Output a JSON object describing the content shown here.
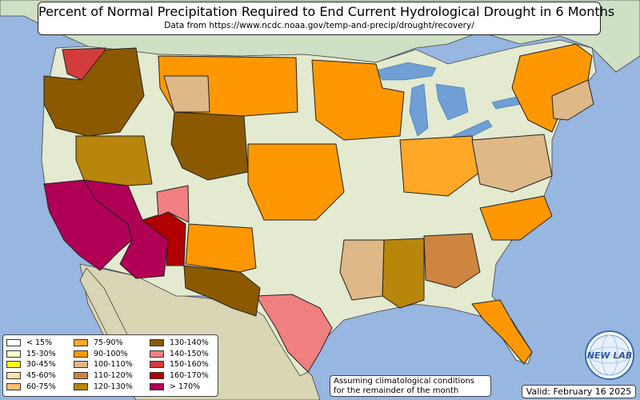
{
  "title": "Percent of Normal Precipitation Required to End Current Hydrological Drought in 6 Months",
  "subtitle": "Data from https://www.ncdc.noaa.gov/temp-and-precip/drought/recovery/",
  "note": [
    "Assuming climatological conditions",
    "for the remainder of the month"
  ],
  "valid": "Valid: February 16 2025",
  "logo_text": "NEW LAB",
  "colors": {
    "ocean": "#97b6e0",
    "land": "#e4ead0",
    "mexico": "#d8d6b4",
    "canada": "#cfe0c4",
    "lake": "#6f9fd4",
    "border": "#222222"
  },
  "legend": [
    {
      "label": "< 15%",
      "color": "#ffffff"
    },
    {
      "label": "15-30%",
      "color": "#ffffcc"
    },
    {
      "label": "30-45%",
      "color": "#ffff00"
    },
    {
      "label": "45-60%",
      "color": "#fde0a8"
    },
    {
      "label": "60-75%",
      "color": "#fdbf6f"
    },
    {
      "label": "75-90%",
      "color": "#ffa726"
    },
    {
      "label": "90-100%",
      "color": "#ff9800"
    },
    {
      "label": "100-110%",
      "color": "#deb887"
    },
    {
      "label": "110-120%",
      "color": "#cd853f"
    },
    {
      "label": "120-130%",
      "color": "#b8860b"
    },
    {
      "label": "130-140%",
      "color": "#8b5a00"
    },
    {
      "label": "140-150%",
      "color": "#f08080"
    },
    {
      "label": "150-160%",
      "color": "#d23c3c"
    },
    {
      "label": "160-170%",
      "color": "#b00000"
    },
    {
      "label": "> 170%",
      "color": "#b00055"
    }
  ],
  "regions": [
    {
      "name": "southern-california",
      "category": "> 170%"
    },
    {
      "name": "central-arizona",
      "category": "> 170%"
    },
    {
      "name": "western-new-mexico",
      "category": "160-170%"
    },
    {
      "name": "northwest-washington",
      "category": "150-160%"
    },
    {
      "name": "southwest-utah",
      "category": "140-150%"
    },
    {
      "name": "south-texas",
      "category": "140-150%"
    },
    {
      "name": "oregon-idaho",
      "category": "130-140%"
    },
    {
      "name": "wyoming-colorado",
      "category": "130-140%"
    },
    {
      "name": "west-texas",
      "category": "130-140%"
    },
    {
      "name": "great-basin",
      "category": "120-130%"
    },
    {
      "name": "lower-mississippi",
      "category": "120-130%"
    },
    {
      "name": "arkansas-tennessee",
      "category": "110-120%"
    },
    {
      "name": "eastern-new-mexico",
      "category": "90-100%"
    },
    {
      "name": "montana-dakotas",
      "category": "90-100%"
    },
    {
      "name": "upper-midwest",
      "category": "90-100%"
    },
    {
      "name": "central-plains",
      "category": "90-100%"
    },
    {
      "name": "florida",
      "category": "90-100%"
    },
    {
      "name": "carolinas",
      "category": "90-100%"
    },
    {
      "name": "northeast",
      "category": "90-100%"
    },
    {
      "name": "great-lakes",
      "category": "75-90%"
    },
    {
      "name": "southeast",
      "category": "100-110%"
    },
    {
      "name": "mid-atlantic",
      "category": "100-110%"
    },
    {
      "name": "new-england-east",
      "category": "100-110%"
    },
    {
      "name": "north-dakota",
      "category": "100-110%"
    }
  ]
}
